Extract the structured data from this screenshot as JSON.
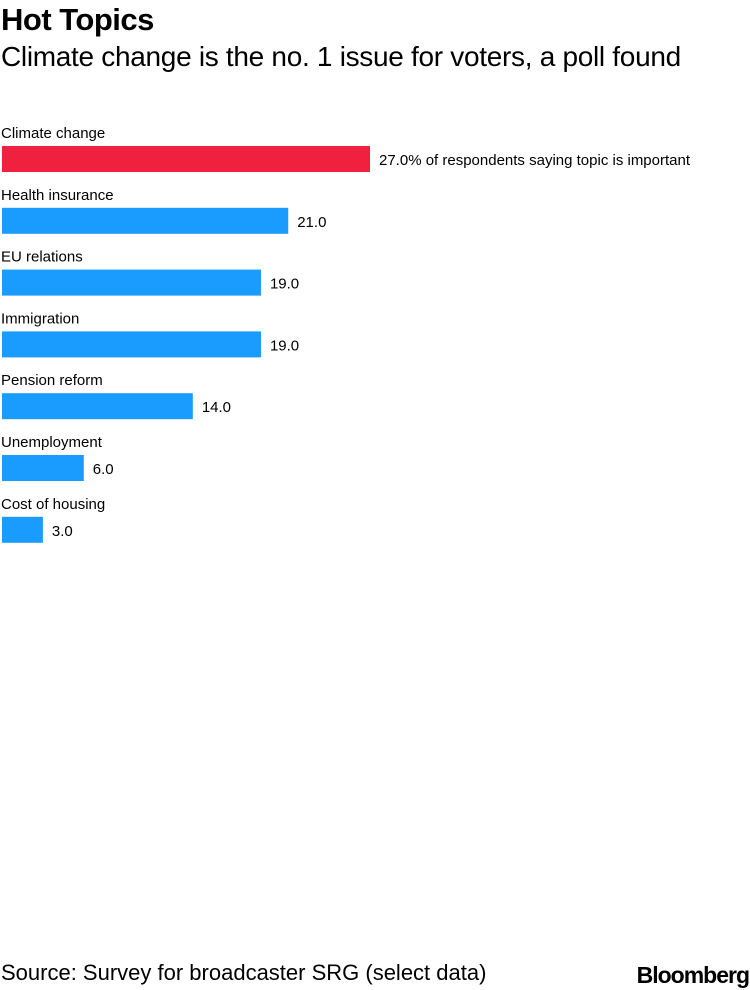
{
  "header": {
    "title": "Hot Topics",
    "subtitle": "Climate change is the no. 1 issue for voters, a poll found"
  },
  "footer": {
    "source": "Source: Survey for broadcaster SRG (select data)",
    "logo": "Bloomberg"
  },
  "colors": {
    "highlight": "#f0213f",
    "bar": "#1a9cff",
    "text": "#000000"
  },
  "chart_data": {
    "type": "bar",
    "orientation": "horizontal",
    "categories": [
      "Climate change",
      "Health insurance",
      "EU relations",
      "Immigration",
      "Pension reform",
      "Unemployment",
      "Cost of housing"
    ],
    "values": [
      27.0,
      21.0,
      19.0,
      19.0,
      14.0,
      6.0,
      3.0
    ],
    "data_labels": [
      "27.0% of respondents saying topic is important",
      "21.0",
      "19.0",
      "19.0",
      "14.0",
      "6.0",
      "3.0"
    ],
    "highlight_index": 0,
    "grid": false,
    "legend": "none"
  }
}
